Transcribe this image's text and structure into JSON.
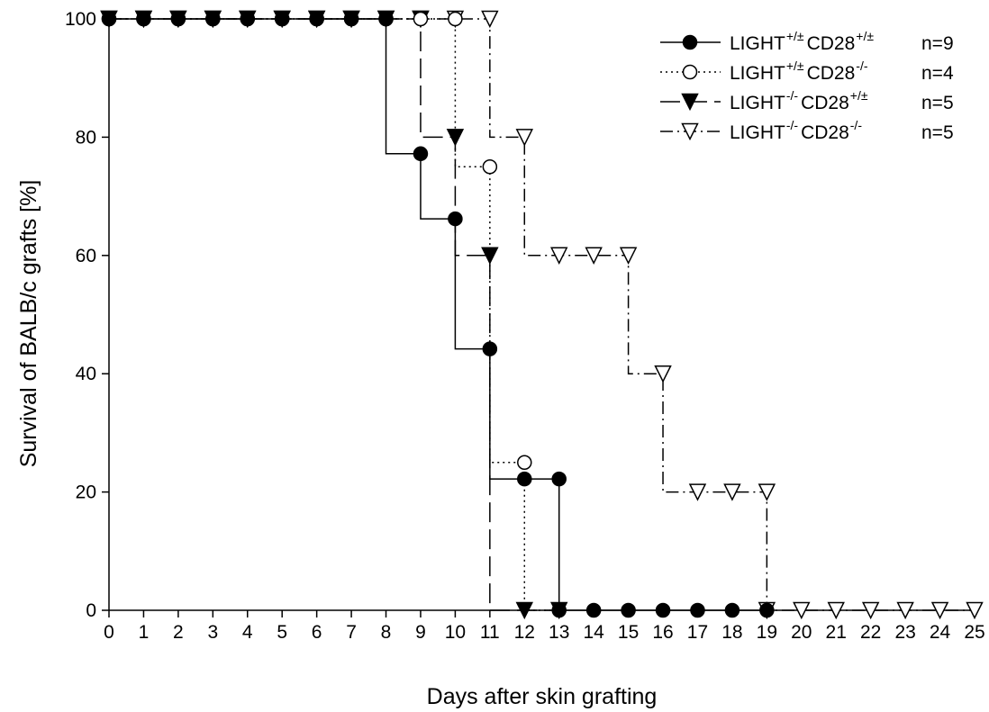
{
  "chart_data": {
    "type": "line",
    "step": true,
    "xlabel": "Days after skin grafting",
    "ylabel": "Survival of BALB/c grafts [%]",
    "xlim": [
      0,
      25
    ],
    "ylim": [
      0,
      100
    ],
    "x_ticks": [
      0,
      1,
      2,
      3,
      4,
      5,
      6,
      7,
      8,
      9,
      10,
      11,
      12,
      13,
      14,
      15,
      16,
      17,
      18,
      19,
      20,
      21,
      22,
      23,
      24,
      25
    ],
    "y_ticks": [
      0,
      20,
      40,
      60,
      80,
      100
    ],
    "grid": false,
    "legend_position": "top-right",
    "series": [
      {
        "name": "LIGHT",
        "label_parts": [
          "LIGHT",
          "+/±",
          "CD28",
          "+/±",
          "n=9"
        ],
        "marker": "circle-filled",
        "line_style": "solid",
        "x": [
          0,
          1,
          2,
          3,
          4,
          5,
          6,
          7,
          8,
          9,
          10,
          11,
          12,
          13,
          14,
          15,
          16,
          17,
          18,
          19
        ],
        "y": [
          100,
          100,
          100,
          100,
          100,
          100,
          100,
          100,
          100,
          77.2,
          66.2,
          44.2,
          22.2,
          22.2,
          0,
          0,
          0,
          0,
          0,
          0
        ],
        "steps": [
          [
            0,
            100
          ],
          [
            8,
            100
          ],
          [
            8,
            77.2
          ],
          [
            9,
            77.2
          ],
          [
            9,
            66.2
          ],
          [
            10,
            66.2
          ],
          [
            10,
            44.2
          ],
          [
            11,
            44.2
          ],
          [
            11,
            22.2
          ],
          [
            13,
            22.2
          ],
          [
            13,
            0
          ],
          [
            19,
            0
          ]
        ],
        "extra_markers": [
          [
            13,
            0
          ]
        ]
      },
      {
        "name": "LIGHT",
        "label_parts": [
          "LIGHT",
          "+/±",
          "CD28",
          "-/-",
          "n=4"
        ],
        "marker": "circle-open",
        "line_style": "dotted",
        "x": [
          0,
          1,
          2,
          3,
          4,
          5,
          6,
          7,
          8,
          9,
          10,
          11,
          12
        ],
        "y": [
          100,
          100,
          100,
          100,
          100,
          100,
          100,
          100,
          100,
          100,
          100,
          75,
          25
        ],
        "steps": [
          [
            0,
            100
          ],
          [
            10,
            100
          ],
          [
            10,
            75
          ],
          [
            11,
            75
          ],
          [
            11,
            25
          ],
          [
            12,
            25
          ],
          [
            12,
            0
          ],
          [
            13,
            0
          ]
        ],
        "extra_markers": []
      },
      {
        "name": "LIGHT",
        "label_parts": [
          "LIGHT",
          "-/-",
          "CD28",
          "+/±",
          "n=5"
        ],
        "marker": "triangle-down-filled",
        "line_style": "long-dash",
        "x": [
          0,
          1,
          2,
          3,
          4,
          5,
          6,
          7,
          8,
          9,
          10,
          11,
          12,
          13
        ],
        "y": [
          100,
          100,
          100,
          100,
          100,
          100,
          100,
          100,
          100,
          100,
          80,
          60,
          0,
          0
        ],
        "steps": [
          [
            0,
            100
          ],
          [
            9,
            100
          ],
          [
            9,
            80
          ],
          [
            10,
            80
          ],
          [
            10,
            60
          ],
          [
            11,
            60
          ],
          [
            11,
            0
          ],
          [
            13,
            0
          ]
        ],
        "extra_markers": []
      },
      {
        "name": "LIGHT",
        "label_parts": [
          "LIGHT",
          "-/-",
          "CD28",
          "-/-",
          "n=5"
        ],
        "marker": "triangle-down-open",
        "line_style": "dash-dot",
        "x": [
          0,
          1,
          2,
          3,
          4,
          5,
          6,
          7,
          8,
          9,
          10,
          11,
          12,
          13,
          14,
          15,
          16,
          17,
          18,
          19,
          20,
          21,
          22,
          23,
          24,
          25
        ],
        "y": [
          100,
          100,
          100,
          100,
          100,
          100,
          100,
          100,
          100,
          100,
          100,
          100,
          80,
          60,
          60,
          60,
          40,
          20,
          20,
          20,
          0,
          0,
          0,
          0,
          0,
          0
        ],
        "steps": [
          [
            0,
            100
          ],
          [
            11,
            100
          ],
          [
            11,
            80
          ],
          [
            12,
            80
          ],
          [
            12,
            60
          ],
          [
            15,
            60
          ],
          [
            15,
            40
          ],
          [
            16,
            40
          ],
          [
            16,
            20
          ],
          [
            19,
            20
          ],
          [
            19,
            0
          ],
          [
            25,
            0
          ]
        ],
        "extra_markers": [
          [
            19,
            0
          ]
        ]
      }
    ]
  }
}
